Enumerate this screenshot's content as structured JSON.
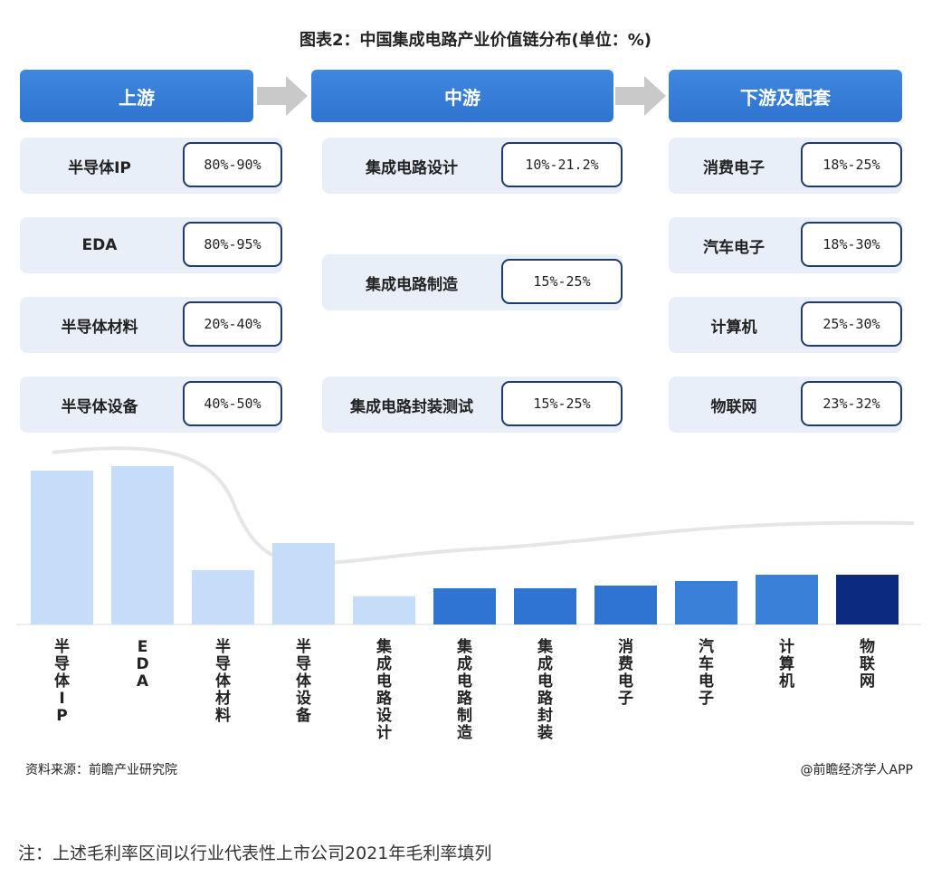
{
  "title": "图表2：中国集成电路产业价值链分布(单位：%)",
  "stages": [
    {
      "name": "上游",
      "items": [
        {
          "label": "半导体IP",
          "range": "80%-90%"
        },
        {
          "label": "EDA",
          "range": "80%-95%"
        },
        {
          "label": "半导体材料",
          "range": "20%-40%"
        },
        {
          "label": "半导体设备",
          "range": "40%-50%"
        }
      ]
    },
    {
      "name": "中游",
      "items": [
        {
          "label": "集成电路设计",
          "range": "10%-21.2%"
        },
        {
          "label": "集成电路制造",
          "range": "15%-25%"
        },
        {
          "label": "集成电路封装测试",
          "range": "15%-25%"
        }
      ]
    },
    {
      "name": "下游及配套",
      "items": [
        {
          "label": "消费电子",
          "range": "18%-25%"
        },
        {
          "label": "汽车电子",
          "range": "18%-30%"
        },
        {
          "label": "计算机",
          "range": "25%-30%"
        },
        {
          "label": "物联网",
          "range": "23%-32%"
        }
      ]
    }
  ],
  "chart_data": {
    "type": "bar",
    "categories": [
      "半导体IP",
      "EDA",
      "半导体材料",
      "半导体设备",
      "集成电路设计",
      "集成电路制造",
      "集成电路封装",
      "消费电子",
      "汽车电子",
      "计算机",
      "物联网"
    ],
    "values": [
      85,
      87.5,
      30,
      45,
      15.6,
      20,
      20,
      21.5,
      24,
      27.5,
      27.5
    ],
    "colors": [
      "#c5ddf8",
      "#c5ddf8",
      "#c5ddf8",
      "#c5ddf8",
      "#c5ddf8",
      "#2f74d0",
      "#2f74d0",
      "#2f74d0",
      "#3a7fd8",
      "#3a7fd8",
      "#0b2a80"
    ],
    "ylim": [
      0,
      100
    ]
  },
  "footer": {
    "source": "资料来源：前瞻产业研究院",
    "credit": "@前瞻经济学人APP"
  },
  "note": "注：上述毛利率区间以行业代表性上市公司2021年毛利率填列"
}
